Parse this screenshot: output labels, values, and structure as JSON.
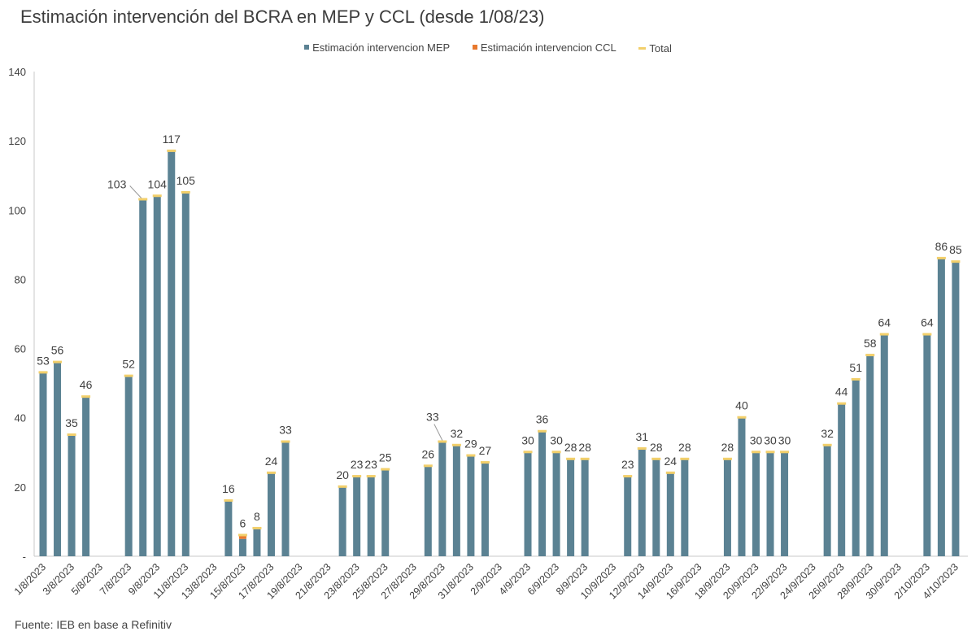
{
  "title": "Estimación intervención del BCRA en MEP y CCL (desde 1/08/23)",
  "source": "Fuente: IEB en base  a Refinitiv",
  "colors": {
    "mep": "#5b8293",
    "ccl": "#e8792e",
    "total": "#f2cf6b",
    "axis": "#c8c8c8",
    "text": "#404040"
  },
  "chart_data": {
    "type": "bar",
    "title": "Estimación intervención del BCRA en MEP y CCL (desde 1/08/23)",
    "legend": [
      "Estimación intervencion MEP",
      "Estimación intervencion CCL",
      "Total"
    ],
    "legend_position": "top",
    "ylim": [
      0,
      140
    ],
    "yticks": [
      "-",
      "20",
      "40",
      "60",
      "80",
      "100",
      "120",
      "140"
    ],
    "grid": false,
    "categories": [
      "1/8/2023",
      "2/8/2023",
      "3/8/2023",
      "4/8/2023",
      "5/8/2023",
      "6/8/2023",
      "7/8/2023",
      "8/8/2023",
      "9/8/2023",
      "10/8/2023",
      "11/8/2023",
      "12/8/2023",
      "13/8/2023",
      "14/8/2023",
      "15/8/2023",
      "16/8/2023",
      "17/8/2023",
      "18/8/2023",
      "19/8/2023",
      "20/8/2023",
      "21/8/2023",
      "22/8/2023",
      "23/8/2023",
      "24/8/2023",
      "25/8/2023",
      "26/8/2023",
      "27/8/2023",
      "28/8/2023",
      "29/8/2023",
      "30/8/2023",
      "31/8/2023",
      "1/9/2023",
      "2/9/2023",
      "3/9/2023",
      "4/9/2023",
      "5/9/2023",
      "6/9/2023",
      "7/9/2023",
      "8/9/2023",
      "9/9/2023",
      "10/9/2023",
      "11/9/2023",
      "12/9/2023",
      "13/9/2023",
      "14/9/2023",
      "15/9/2023",
      "16/9/2023",
      "17/9/2023",
      "18/9/2023",
      "19/9/2023",
      "20/9/2023",
      "21/9/2023",
      "22/9/2023",
      "23/9/2023",
      "24/9/2023",
      "25/9/2023",
      "26/9/2023",
      "27/9/2023",
      "28/9/2023",
      "29/9/2023",
      "30/9/2023",
      "1/10/2023",
      "2/10/2023",
      "3/10/2023",
      "4/10/2023"
    ],
    "series": [
      {
        "name": "Estimación intervencion MEP",
        "values": [
          53,
          56,
          35,
          46,
          null,
          null,
          52,
          103,
          104,
          117,
          105,
          null,
          null,
          16,
          5,
          8,
          24,
          33,
          null,
          null,
          null,
          20,
          23,
          23,
          25,
          null,
          null,
          26,
          33,
          32,
          29,
          27,
          null,
          null,
          30,
          36,
          30,
          28,
          28,
          null,
          null,
          23,
          31,
          28,
          24,
          28,
          null,
          null,
          28,
          40,
          30,
          30,
          30,
          null,
          null,
          32,
          44,
          51,
          58,
          64,
          null,
          null,
          64,
          86,
          85
        ]
      },
      {
        "name": "Estimación intervencion CCL",
        "values": [
          0,
          0,
          0,
          0,
          null,
          null,
          0,
          0,
          0,
          0,
          0,
          null,
          null,
          0,
          1,
          0,
          0,
          0,
          null,
          null,
          null,
          0,
          0,
          0,
          0,
          null,
          null,
          0,
          0,
          0,
          0,
          0,
          null,
          null,
          0,
          0,
          0,
          0,
          0,
          null,
          null,
          0,
          0,
          0,
          0,
          0,
          null,
          null,
          0,
          0,
          0,
          0,
          0,
          null,
          null,
          0,
          0,
          0,
          0,
          0,
          null,
          null,
          0,
          0,
          0
        ]
      },
      {
        "name": "Total",
        "values": [
          53,
          56,
          35,
          46,
          null,
          null,
          52,
          103,
          104,
          117,
          105,
          null,
          null,
          16,
          6,
          8,
          24,
          33,
          null,
          null,
          null,
          20,
          23,
          23,
          25,
          null,
          null,
          26,
          33,
          32,
          29,
          27,
          null,
          null,
          30,
          36,
          30,
          28,
          28,
          null,
          null,
          23,
          31,
          28,
          24,
          28,
          null,
          null,
          28,
          40,
          30,
          30,
          30,
          null,
          null,
          32,
          44,
          51,
          58,
          64,
          null,
          null,
          64,
          86,
          85
        ]
      }
    ]
  }
}
